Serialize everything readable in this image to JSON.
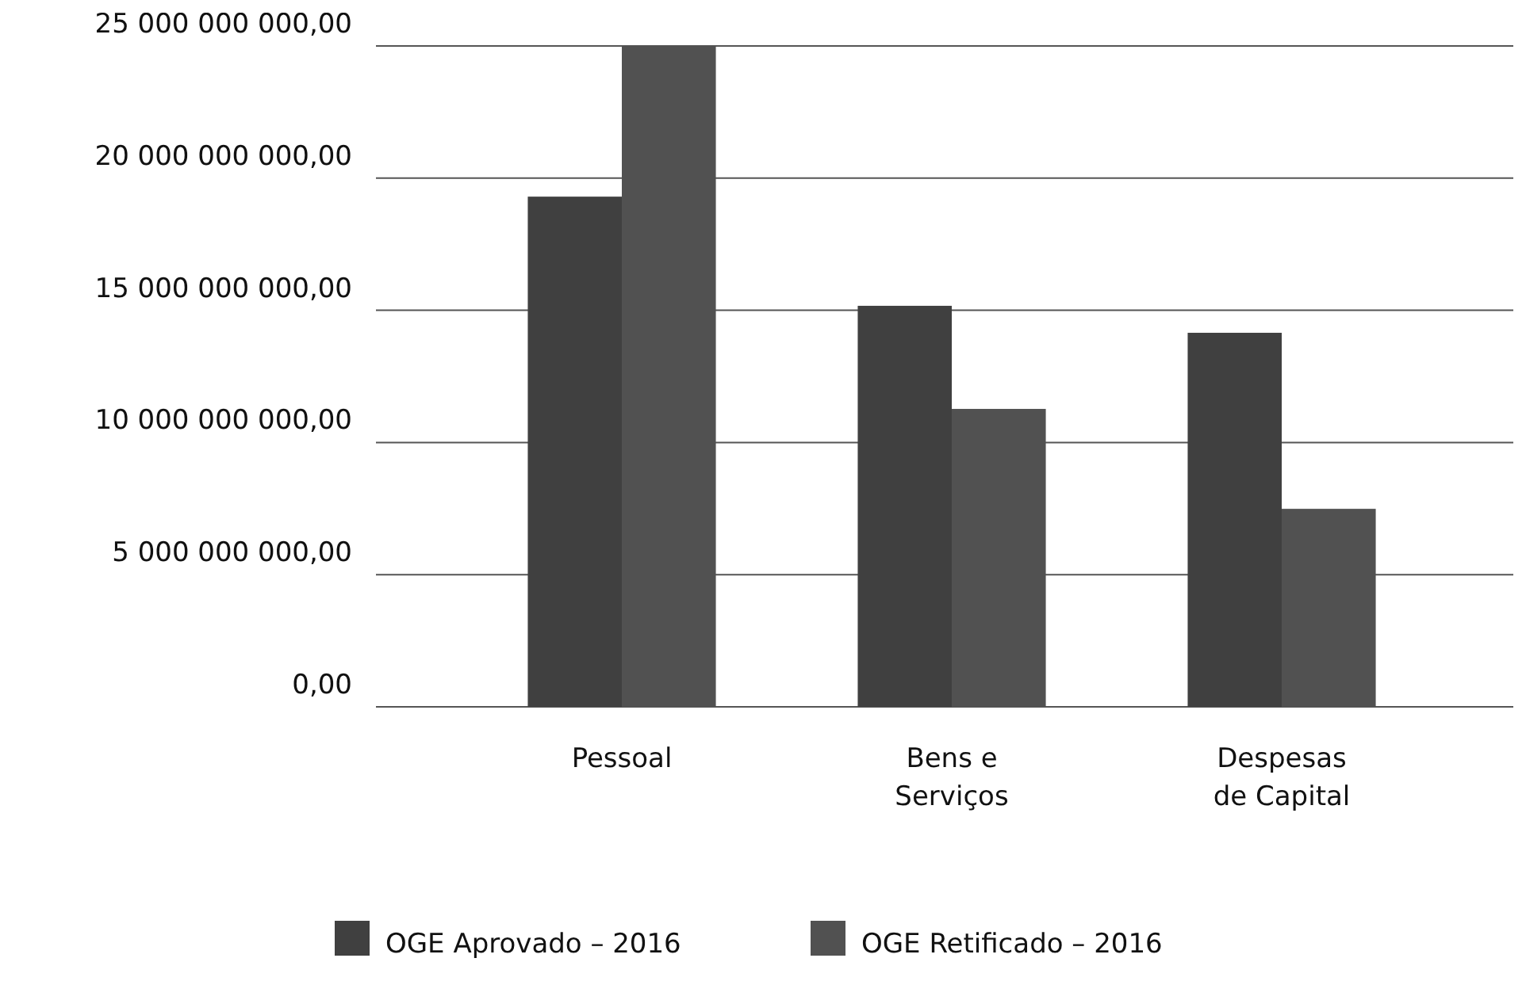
{
  "chart_data": {
    "type": "bar",
    "categories": [
      "Pessoal",
      "Bens e Serviços",
      "Despesas de Capital"
    ],
    "series": [
      {
        "name": "OGE Aprovado – 2016",
        "color": "#404040",
        "values": [
          19300000000,
          15170000000,
          14150000000
        ]
      },
      {
        "name": "OGE Retificado – 2016",
        "color": "#515151",
        "values": [
          25000000000,
          11270000000,
          7490000000
        ]
      }
    ],
    "ylim": [
      0,
      25000000000
    ],
    "yticks": [
      {
        "value": 0,
        "label": "0,00"
      },
      {
        "value": 5000000000,
        "label": "5 000 000 000,00"
      },
      {
        "value": 10000000000,
        "label": "10 000 000 000,00"
      },
      {
        "value": 15000000000,
        "label": "15 000 000 000,00"
      },
      {
        "value": 20000000000,
        "label": "20 000 000 000,00"
      },
      {
        "value": 25000000000,
        "label": "25 000 000 000,00"
      }
    ],
    "grid": "y",
    "legend": "bottom"
  }
}
